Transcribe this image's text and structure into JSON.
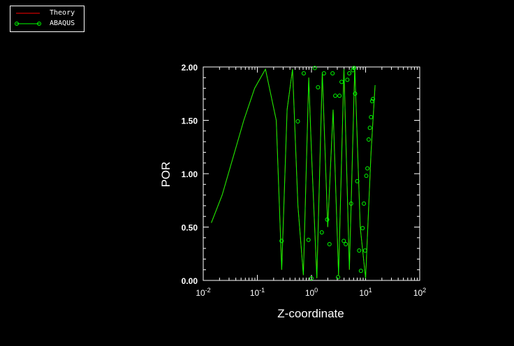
{
  "legend": {
    "theory_label": "Theory",
    "abaqus_label": "ABAQUS",
    "theory_color": "#ff0000",
    "abaqus_color": "#00ff00"
  },
  "chart_data": {
    "type": "line",
    "title": "",
    "xlabel": "Z-coordinate",
    "ylabel": "POR",
    "xscale": "log",
    "xlim": [
      0.01,
      100
    ],
    "ylim": [
      0.0,
      2.0
    ],
    "x_tick_labels": [
      "10-2",
      "10-1",
      "100",
      "101",
      "102"
    ],
    "y_tick_labels": [
      "0.00",
      "0.50",
      "1.00",
      "1.50",
      "2.00"
    ],
    "grid": false,
    "legend_position": "top-left",
    "series": [
      {
        "name": "Theory",
        "color": "#ff0000",
        "marker": "none",
        "x": [
          0.0141,
          0.0224,
          0.0355,
          0.0562,
          0.0891,
          0.1413,
          0.2239,
          0.2818,
          0.3548,
          0.4467,
          0.5623,
          0.7079,
          0.8913,
          1.0,
          1.2589,
          1.5849,
          1.9953,
          2.5119,
          3.1623,
          3.9811,
          5.0119,
          6.3096,
          7.9433,
          10.0,
          12.5893,
          15.0
        ],
        "y": [
          0.54,
          0.8,
          1.15,
          1.5,
          1.8,
          1.98,
          1.5,
          0.1,
          1.6,
          1.98,
          0.7,
          0.05,
          1.9,
          1.2,
          0.02,
          1.95,
          0.5,
          1.6,
          0.05,
          1.98,
          0.1,
          2.0,
          0.5,
          0.02,
          1.2,
          1.83
        ]
      },
      {
        "name": "ABAQUS",
        "color": "#00ff00",
        "marker": "circle",
        "x": [
          0.0141,
          0.0224,
          0.0355,
          0.0562,
          0.0891,
          0.1413,
          0.2239,
          0.2818,
          0.3548,
          0.4467,
          0.5623,
          0.7079,
          0.8913,
          1.0,
          1.2589,
          1.5849,
          1.9953,
          2.5119,
          3.1623,
          3.9811,
          5.0119,
          6.3096,
          7.9433,
          10.0,
          12.5893,
          15.0
        ],
        "y": [
          0.54,
          0.8,
          1.15,
          1.5,
          1.8,
          1.98,
          1.5,
          0.1,
          1.6,
          1.98,
          0.7,
          0.05,
          1.9,
          1.2,
          0.02,
          1.95,
          0.5,
          1.6,
          0.05,
          1.98,
          0.1,
          2.0,
          0.5,
          0.02,
          1.2,
          1.83
        ],
        "marker_points": {
          "x": [
            0.28,
            0.56,
            0.72,
            0.88,
            1.0,
            1.15,
            1.32,
            1.55,
            1.7,
            1.95,
            2.15,
            2.45,
            2.75,
            3.1,
            3.3,
            3.6,
            3.95,
            4.3,
            4.6,
            5.0,
            5.4,
            5.8,
            6.1,
            6.4,
            7.0,
            7.6,
            8.2,
            8.8,
            9.3,
            9.8,
            10.3,
            10.8,
            11.4,
            12.0,
            12.6,
            13.2,
            13.7
          ],
          "y": [
            0.37,
            1.49,
            1.94,
            0.38,
            0.02,
            1.99,
            1.81,
            0.45,
            1.94,
            0.57,
            0.34,
            1.94,
            1.73,
            0.03,
            1.73,
            1.86,
            0.37,
            0.34,
            1.88,
            1.94,
            0.72,
            1.97,
            1.99,
            1.75,
            0.93,
            0.28,
            0.09,
            0.49,
            0.72,
            0.28,
            0.98,
            1.05,
            1.32,
            1.43,
            1.53,
            1.68,
            1.7
          ]
        }
      }
    ]
  }
}
